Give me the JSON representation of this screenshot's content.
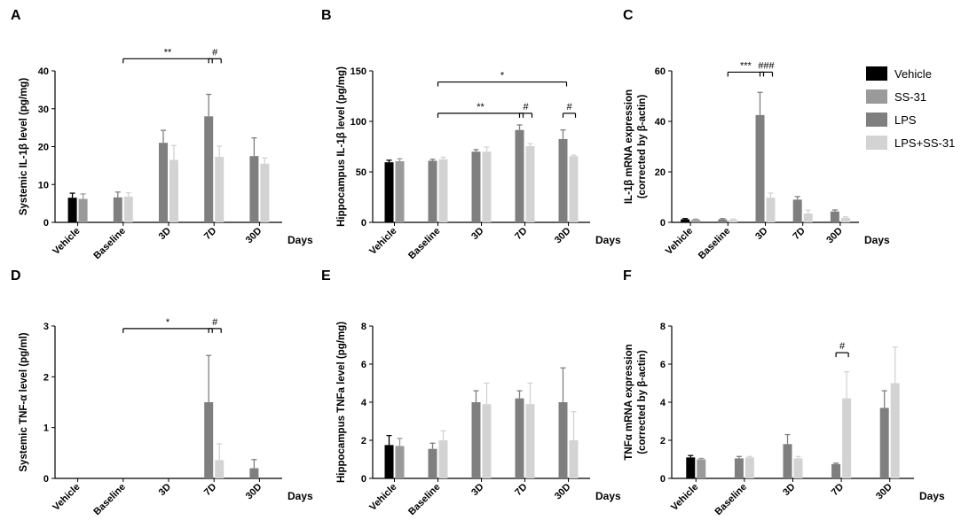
{
  "colors": {
    "Vehicle": "#000000",
    "SS-31": "#9a9a9a",
    "LPS": "#7f7f7f",
    "LPS+SS-31": "#d3d3d3"
  },
  "legend": [
    "Vehicle",
    "SS-31",
    "LPS",
    "LPS+SS-31"
  ],
  "chart_data": [
    {
      "type": "bar",
      "panel": "A",
      "ylabel": "Systemic IL-1β level (pg/mg)",
      "xlabel": "Days",
      "categories": [
        "Vehicle",
        "Baseline",
        "3D",
        "7D",
        "30D"
      ],
      "ylim": [
        0,
        40
      ],
      "yticks": [
        0,
        10,
        20,
        30,
        40
      ],
      "series": [
        {
          "name": "Vehicle",
          "values": [
            6.5,
            null,
            null,
            null,
            null
          ],
          "errors": [
            1.2,
            null,
            null,
            null,
            null
          ]
        },
        {
          "name": "SS-31",
          "values": [
            6.2,
            null,
            null,
            null,
            null
          ],
          "errors": [
            1.3,
            null,
            null,
            null,
            null
          ]
        },
        {
          "name": "LPS",
          "values": [
            null,
            6.6,
            21.0,
            28.0,
            17.5
          ],
          "errors": [
            null,
            1.4,
            3.3,
            5.8,
            4.8
          ]
        },
        {
          "name": "LPS+SS-31",
          "values": [
            null,
            6.8,
            16.5,
            17.3,
            15.5
          ],
          "errors": [
            null,
            1.0,
            3.8,
            2.8,
            1.5
          ]
        }
      ],
      "annotations": [
        {
          "text": "**",
          "from": "Baseline",
          "to": "7D",
          "y": 43.2
        },
        {
          "text": "#",
          "from": "7D",
          "to": "7D",
          "y": 43.2
        }
      ]
    },
    {
      "type": "bar",
      "panel": "B",
      "ylabel": "Hippocampus IL-1β level (pg/mg)",
      "xlabel": "Days",
      "categories": [
        "Vehicle",
        "Baseline",
        "3D",
        "7D",
        "30D"
      ],
      "ylim": [
        0,
        150
      ],
      "yticks": [
        0,
        50,
        100,
        150
      ],
      "series": [
        {
          "name": "Vehicle",
          "values": [
            59.5,
            null,
            null,
            null,
            null
          ],
          "errors": [
            2.0,
            null,
            null,
            null,
            null
          ]
        },
        {
          "name": "SS-31",
          "values": [
            60.5,
            null,
            null,
            null,
            null
          ],
          "errors": [
            2.5,
            null,
            null,
            null,
            null
          ]
        },
        {
          "name": "LPS",
          "values": [
            null,
            61.0,
            70.0,
            91.5,
            82.5
          ],
          "errors": [
            null,
            1.5,
            2.0,
            5.0,
            9.0
          ]
        },
        {
          "name": "LPS+SS-31",
          "values": [
            null,
            62.5,
            70.0,
            75.5,
            65.5
          ],
          "errors": [
            null,
            2.0,
            4.5,
            2.5,
            1.0
          ]
        }
      ],
      "annotations": [
        {
          "text": "*",
          "from": "Baseline",
          "to": "30D",
          "y": 139
        },
        {
          "text": "**",
          "from": "Baseline",
          "to": "7D",
          "y": 108
        },
        {
          "text": "#",
          "from": "7D",
          "to": "7D",
          "y": 108
        },
        {
          "text": "#",
          "from": "30D",
          "to": "30D",
          "y": 108
        }
      ]
    },
    {
      "type": "bar",
      "panel": "C",
      "ylabel": "IL-1β mRNA expression",
      "ylabel2": "(corrected by β-actin)",
      "xlabel": "Days",
      "categories": [
        "Vehicle",
        "Baseline",
        "3D",
        "7D",
        "30D"
      ],
      "ylim": [
        0,
        60
      ],
      "yticks": [
        0,
        20,
        40,
        60
      ],
      "series": [
        {
          "name": "Vehicle",
          "values": [
            1.2,
            null,
            null,
            null,
            null
          ],
          "errors": [
            0.3,
            null,
            null,
            null,
            null
          ]
        },
        {
          "name": "SS-31",
          "values": [
            1.0,
            null,
            null,
            null,
            null
          ],
          "errors": [
            0.3,
            null,
            null,
            null,
            null
          ]
        },
        {
          "name": "LPS",
          "values": [
            null,
            1.2,
            42.5,
            9.0,
            4.3
          ],
          "errors": [
            null,
            0.3,
            9.0,
            1.2,
            0.6
          ]
        },
        {
          "name": "LPS+SS-31",
          "values": [
            null,
            1.0,
            9.8,
            3.5,
            1.8
          ],
          "errors": [
            null,
            0.3,
            1.8,
            1.3,
            0.4
          ]
        }
      ],
      "annotations": [
        {
          "text": "***",
          "from": "Baseline",
          "to": "3D",
          "y": 59.5
        },
        {
          "text": "###",
          "from": "3D",
          "to": "3D",
          "y": 59.5
        }
      ]
    },
    {
      "type": "bar",
      "panel": "D",
      "ylabel": "Systemic TNF-α level (pg/ml)",
      "xlabel": "Days",
      "categories": [
        "Vehicle",
        "Baseline",
        "3D",
        "7D",
        "30D"
      ],
      "ylim": [
        0,
        3
      ],
      "yticks": [
        0,
        1,
        2,
        3
      ],
      "series": [
        {
          "name": "Vehicle",
          "values": [
            0,
            null,
            null,
            null,
            null
          ],
          "errors": [
            null,
            null,
            null,
            null,
            null
          ]
        },
        {
          "name": "SS-31",
          "values": [
            0,
            null,
            null,
            null,
            null
          ],
          "errors": [
            null,
            null,
            null,
            null,
            null
          ]
        },
        {
          "name": "LPS",
          "values": [
            null,
            0,
            0,
            1.5,
            0.2
          ],
          "errors": [
            null,
            null,
            null,
            0.92,
            0.17
          ]
        },
        {
          "name": "LPS+SS-31",
          "values": [
            null,
            0,
            0,
            0.36,
            0
          ],
          "errors": [
            null,
            null,
            null,
            0.32,
            null
          ]
        }
      ],
      "annotations": [
        {
          "text": "*",
          "from": "Baseline",
          "to": "7D",
          "y": 2.95
        },
        {
          "text": "#",
          "from": "7D",
          "to": "7D",
          "y": 2.95
        }
      ]
    },
    {
      "type": "bar",
      "panel": "E",
      "ylabel": "Hippocampus TNFa level (pg/mg)",
      "xlabel": "Days",
      "categories": [
        "Vehicle",
        "Baseline",
        "3D",
        "7D",
        "30D"
      ],
      "ylim": [
        0,
        8
      ],
      "yticks": [
        0,
        2,
        4,
        6,
        8
      ],
      "series": [
        {
          "name": "Vehicle",
          "values": [
            1.75,
            null,
            null,
            null,
            null
          ],
          "errors": [
            0.5,
            null,
            null,
            null,
            null
          ]
        },
        {
          "name": "SS-31",
          "values": [
            1.7,
            null,
            null,
            null,
            null
          ],
          "errors": [
            0.4,
            null,
            null,
            null,
            null
          ]
        },
        {
          "name": "LPS",
          "values": [
            null,
            1.55,
            4.0,
            4.2,
            4.0
          ],
          "errors": [
            null,
            0.3,
            0.6,
            0.4,
            1.8
          ]
        },
        {
          "name": "LPS+SS-31",
          "values": [
            null,
            2.0,
            3.9,
            3.9,
            2.0
          ],
          "errors": [
            null,
            0.5,
            1.1,
            1.1,
            1.5
          ]
        }
      ],
      "annotations": []
    },
    {
      "type": "bar",
      "panel": "F",
      "ylabel": "TNFα mRNA expression",
      "ylabel2": "(corrected by β-actin)",
      "xlabel": "Days",
      "categories": [
        "Vehicle",
        "Baseline",
        "3D",
        "7D",
        "30D"
      ],
      "ylim": [
        0,
        8
      ],
      "yticks": [
        0,
        2,
        4,
        6,
        8
      ],
      "series": [
        {
          "name": "Vehicle",
          "values": [
            1.1,
            null,
            null,
            null,
            null
          ],
          "errors": [
            0.1,
            null,
            null,
            null,
            null
          ]
        },
        {
          "name": "SS-31",
          "values": [
            1.0,
            null,
            null,
            null,
            null
          ],
          "errors": [
            0.05,
            null,
            null,
            null,
            null
          ]
        },
        {
          "name": "LPS",
          "values": [
            null,
            1.05,
            1.8,
            0.75,
            3.7
          ],
          "errors": [
            null,
            0.1,
            0.5,
            0.05,
            0.9
          ]
        },
        {
          "name": "LPS+SS-31",
          "values": [
            null,
            1.1,
            1.05,
            4.2,
            5.0
          ],
          "errors": [
            null,
            0.05,
            0.1,
            1.4,
            1.9
          ]
        }
      ],
      "annotations": [
        {
          "text": "#",
          "from": "7D",
          "to": "7D",
          "y": 6.6
        }
      ]
    }
  ]
}
